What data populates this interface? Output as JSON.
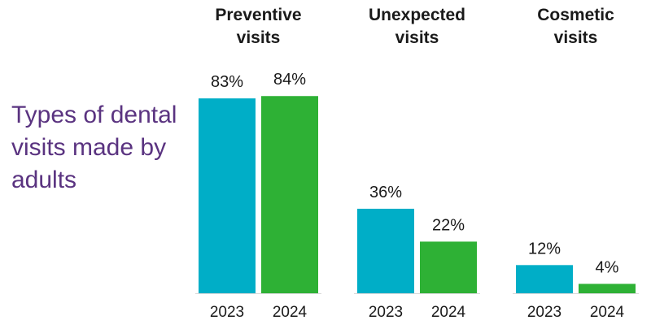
{
  "chart_data": {
    "type": "bar",
    "title": "Types of dental visits made by adults",
    "categories": [
      "Preventive visits",
      "Unexpected visits",
      "Cosmetic visits"
    ],
    "category_lines": [
      [
        "Preventive",
        "visits"
      ],
      [
        "Unexpected",
        "visits"
      ],
      [
        "Cosmetic",
        "visits"
      ]
    ],
    "series": [
      {
        "name": "2023",
        "color": "#00aec7",
        "values": [
          83,
          36,
          12
        ]
      },
      {
        "name": "2024",
        "color": "#2eb135",
        "values": [
          84,
          22,
          4
        ]
      }
    ],
    "value_suffix": "%",
    "ylim": [
      0,
      100
    ],
    "colors": {
      "title": "#5a3380",
      "baseline": "#d9d9d9",
      "text": "#1a1a1a"
    }
  }
}
